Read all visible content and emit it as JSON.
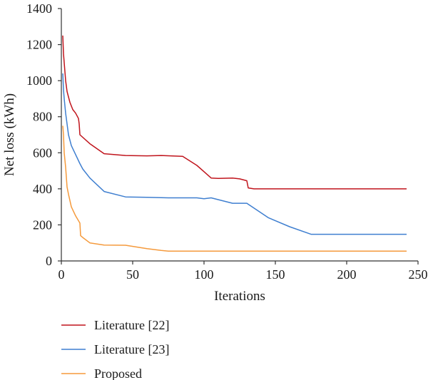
{
  "chart_data": {
    "type": "line",
    "xlabel": "Iterations",
    "ylabel": "Net loss (kWh)",
    "xlim": [
      0,
      250
    ],
    "ylim": [
      0,
      1400
    ],
    "xticks": [
      0,
      50,
      100,
      150,
      200,
      250
    ],
    "yticks": [
      0,
      200,
      400,
      600,
      800,
      1000,
      1200,
      1400
    ],
    "grid": false,
    "legend_position": "bottom-left",
    "series": [
      {
        "name": "Literature [22]",
        "color": "#c0141c",
        "x": [
          1,
          1.5,
          2,
          3,
          4,
          6,
          8,
          10,
          12,
          12.5,
          13,
          20,
          30,
          45,
          60,
          70,
          85,
          95,
          100,
          105,
          110,
          120,
          125,
          130,
          131,
          135,
          150,
          200,
          242
        ],
        "y": [
          1250,
          1150,
          1100,
          1000,
          940,
          880,
          840,
          820,
          790,
          760,
          700,
          650,
          595,
          585,
          583,
          585,
          580,
          530,
          495,
          460,
          458,
          460,
          455,
          445,
          405,
          400,
          400,
          400,
          400
        ]
      },
      {
        "name": "Literature [23]",
        "color": "#3f7fd0",
        "x": [
          1,
          1.5,
          2,
          3,
          4,
          5,
          7,
          10,
          13,
          15,
          20,
          30,
          45,
          60,
          75,
          95,
          100,
          105,
          120,
          130,
          145,
          160,
          175,
          200,
          242
        ],
        "y": [
          1040,
          950,
          900,
          820,
          760,
          700,
          640,
          590,
          540,
          510,
          460,
          385,
          355,
          353,
          350,
          350,
          345,
          350,
          320,
          320,
          240,
          190,
          148,
          148,
          148
        ]
      },
      {
        "name": "Proposed",
        "color": "#f59a3c",
        "x": [
          1,
          1.5,
          2,
          3,
          4,
          5,
          7,
          10,
          13,
          13.5,
          15,
          20,
          30,
          45,
          60,
          70,
          75,
          100,
          150,
          200,
          242
        ],
        "y": [
          750,
          700,
          600,
          520,
          410,
          370,
          300,
          250,
          210,
          140,
          130,
          100,
          88,
          87,
          68,
          58,
          54,
          54,
          54,
          54,
          54
        ]
      }
    ]
  }
}
